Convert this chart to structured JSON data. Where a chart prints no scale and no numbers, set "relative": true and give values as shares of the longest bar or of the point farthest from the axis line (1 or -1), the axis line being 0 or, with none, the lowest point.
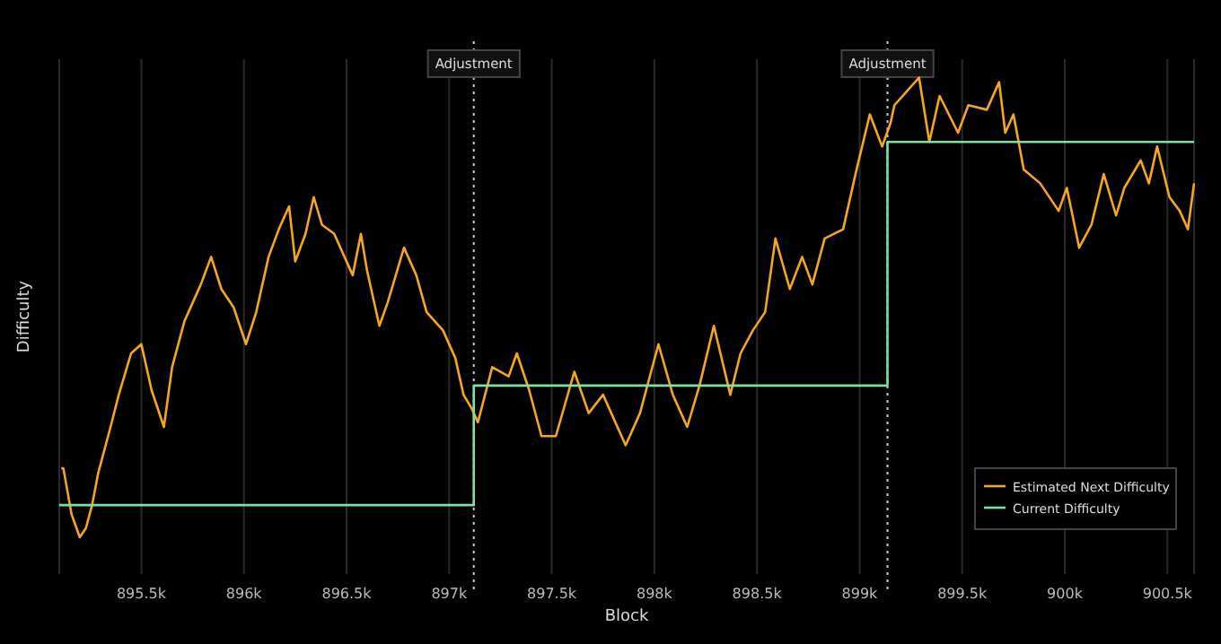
{
  "chart_data": {
    "type": "line",
    "xlabel": "Block",
    "ylabel": "Difficulty",
    "relative": true,
    "grid": "x",
    "legend": "bottom right",
    "xlim": [
      895100,
      900630
    ],
    "xticks": [
      {
        "value": 895500,
        "label": "895.5k"
      },
      {
        "value": 896000,
        "label": "896k"
      },
      {
        "value": 896500,
        "label": "896.5k"
      },
      {
        "value": 897000,
        "label": "897k"
      },
      {
        "value": 897500,
        "label": "897.5k"
      },
      {
        "value": 898000,
        "label": "898k"
      },
      {
        "value": 898500,
        "label": "898.5k"
      },
      {
        "value": 899000,
        "label": "899k"
      },
      {
        "value": 899500,
        "label": "899.5k"
      },
      {
        "value": 900000,
        "label": "900k"
      },
      {
        "value": 900500,
        "label": "900.5k"
      }
    ],
    "ref_lines": [
      {
        "axis": "x",
        "value": 897120,
        "label": "Adjustment",
        "color": "#cccccc",
        "line_style": "dotted"
      },
      {
        "axis": "x",
        "value": 899136,
        "label": "Adjustment",
        "color": "#cccccc",
        "line_style": "dotted"
      }
    ],
    "series": [
      {
        "name": "Estimated Next Difficulty",
        "color": "#f5a623",
        "type": "line",
        "x": [
          895110,
          895120,
          895160,
          895200,
          895230,
          895260,
          895290,
          895350,
          895390,
          895450,
          895500,
          895550,
          895610,
          895650,
          895710,
          895790,
          895840,
          895890,
          895950,
          896010,
          896060,
          896120,
          896170,
          896220,
          896250,
          896300,
          896340,
          896380,
          896440,
          896530,
          896570,
          896600,
          896660,
          896700,
          896780,
          896840,
          896890,
          896970,
          897030,
          897070,
          897110,
          897140,
          897210,
          897290,
          897330,
          897390,
          897450,
          897520,
          897610,
          897680,
          897750,
          897860,
          897930,
          898020,
          898090,
          898160,
          898220,
          898290,
          898370,
          898420,
          898480,
          898540,
          898590,
          898660,
          898720,
          898770,
          898830,
          898920,
          898980,
          899050,
          899110,
          899150,
          899170,
          899230,
          899290,
          899340,
          899390,
          899480,
          899530,
          899620,
          899680,
          899710,
          899750,
          899800,
          899880,
          899970,
          900010,
          900070,
          900130,
          900190,
          900250,
          900290,
          900370,
          900410,
          900450,
          900510,
          900560,
          900600,
          900630
        ],
        "values": [
          0.15,
          0.15,
          0.05,
          0,
          0.02,
          0.07,
          0.14,
          0.24,
          0.31,
          0.4,
          0.42,
          0.32,
          0.24,
          0.37,
          0.47,
          0.55,
          0.61,
          0.54,
          0.5,
          0.42,
          0.49,
          0.61,
          0.67,
          0.72,
          0.6,
          0.66,
          0.74,
          0.68,
          0.66,
          0.57,
          0.66,
          0.58,
          0.46,
          0.51,
          0.63,
          0.57,
          0.49,
          0.45,
          0.39,
          0.31,
          0.28,
          0.25,
          0.37,
          0.35,
          0.4,
          0.32,
          0.22,
          0.22,
          0.36,
          0.27,
          0.31,
          0.2,
          0.27,
          0.42,
          0.31,
          0.24,
          0.33,
          0.46,
          0.31,
          0.4,
          0.45,
          0.49,
          0.65,
          0.54,
          0.61,
          0.55,
          0.65,
          0.67,
          0.79,
          0.92,
          0.85,
          0.9,
          0.94,
          0.97,
          1.0,
          0.86,
          0.96,
          0.88,
          0.94,
          0.93,
          0.99,
          0.88,
          0.92,
          0.8,
          0.77,
          0.71,
          0.76,
          0.63,
          0.68,
          0.79,
          0.7,
          0.76,
          0.82,
          0.77,
          0.85,
          0.74,
          0.71,
          0.67,
          0.77
        ]
      },
      {
        "name": "Current Difficulty",
        "color": "#7ee0a1",
        "type": "line",
        "x": [
          895100,
          897120,
          897120,
          899136,
          899136,
          900630
        ],
        "values": [
          0.07,
          0.07,
          0.33,
          0.33,
          0.86,
          0.86
        ]
      }
    ]
  }
}
